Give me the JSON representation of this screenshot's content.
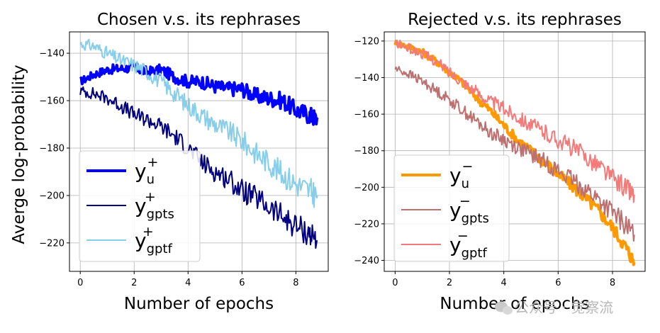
{
  "chart_data": [
    {
      "type": "line",
      "title": "Chosen v.s. its rephrases",
      "xlabel": "Number of epochs",
      "ylabel": "Averge log-probability",
      "xlim": [
        -0.4,
        9.2
      ],
      "ylim": [
        -232,
        -131
      ],
      "xticks": [
        0,
        2,
        4,
        6,
        8
      ],
      "yticks": [
        -140,
        -160,
        -180,
        -200,
        -220
      ],
      "grid": true,
      "legend_position": "lower-left",
      "series": [
        {
          "name": "y_u^+",
          "legend": {
            "base": "y",
            "sub": "u",
            "sup": "+"
          },
          "color": "#0000ff",
          "linewidth": 4,
          "x": [
            0,
            0.5,
            1,
            1.5,
            2,
            2.5,
            3,
            3.5,
            4,
            4.5,
            5,
            5.5,
            6,
            6.5,
            7,
            7.5,
            8,
            8.5,
            8.8
          ],
          "y": [
            -152,
            -149,
            -147,
            -146.5,
            -146,
            -148,
            -147,
            -150,
            -152,
            -152,
            -154,
            -155,
            -155,
            -158,
            -159,
            -160,
            -164,
            -166,
            -168
          ]
        },
        {
          "name": "y_gpts^+",
          "legend": {
            "base": "y",
            "sub": "gpts",
            "sup": "+"
          },
          "color": "#000080",
          "linewidth": 2,
          "x": [
            0,
            0.5,
            1,
            1.5,
            2,
            2.5,
            3,
            3.5,
            4,
            4.5,
            5,
            5.5,
            6,
            6.5,
            7,
            7.5,
            8,
            8.5,
            8.8
          ],
          "y": [
            -156,
            -157,
            -159,
            -162,
            -166,
            -168,
            -171,
            -175,
            -180,
            -186,
            -190,
            -193,
            -198,
            -201,
            -205,
            -209,
            -213,
            -216,
            -219
          ]
        },
        {
          "name": "y_gptf^+",
          "legend": {
            "base": "y",
            "sub": "gptf",
            "sup": "+"
          },
          "color": "#87ceeb",
          "linewidth": 2,
          "x": [
            0,
            0.5,
            1,
            1.5,
            2,
            2.5,
            3,
            3.5,
            4,
            4.5,
            5,
            5.5,
            6,
            6.5,
            7,
            7.5,
            8,
            8.5,
            8.8
          ],
          "y": [
            -136,
            -137,
            -140,
            -143,
            -145,
            -148,
            -152,
            -157,
            -162,
            -166,
            -170,
            -173,
            -177,
            -182,
            -186,
            -191,
            -195,
            -198,
            -200
          ]
        }
      ]
    },
    {
      "type": "line",
      "title": "Rejected v.s. its rephrases",
      "xlabel": "Number of epochs",
      "ylabel": "",
      "xlim": [
        -0.4,
        9.2
      ],
      "ylim": [
        -246,
        -115
      ],
      "xticks": [
        0,
        2,
        4,
        6,
        8
      ],
      "yticks": [
        -120,
        -140,
        -160,
        -180,
        -200,
        -220,
        -240
      ],
      "grid": true,
      "legend_position": "lower-left",
      "series": [
        {
          "name": "y_u^-",
          "legend": {
            "base": "y",
            "sub": "u",
            "sup": "−"
          },
          "color": "#ff9900",
          "linewidth": 4,
          "x": [
            0,
            0.5,
            1,
            1.5,
            2,
            2.5,
            3,
            3.5,
            4,
            4.5,
            5,
            5.5,
            6,
            6.5,
            7,
            7.5,
            8,
            8.5,
            8.8
          ],
          "y": [
            -121,
            -123,
            -126,
            -131,
            -137,
            -143,
            -151,
            -158,
            -166,
            -174,
            -180,
            -186,
            -193,
            -199,
            -206,
            -213,
            -222,
            -233,
            -241
          ]
        },
        {
          "name": "y_gpts^-",
          "legend": {
            "base": "y",
            "sub": "gpts",
            "sup": "−"
          },
          "color": "#bc7070",
          "linewidth": 2,
          "x": [
            0,
            0.5,
            1,
            1.5,
            2,
            2.5,
            3,
            3.5,
            4,
            4.5,
            5,
            5.5,
            6,
            6.5,
            7,
            7.5,
            8,
            8.5,
            8.8
          ],
          "y": [
            -135,
            -138,
            -142,
            -147,
            -152,
            -158,
            -164,
            -170,
            -174,
            -178,
            -182,
            -186,
            -191,
            -196,
            -201,
            -207,
            -214,
            -221,
            -226
          ]
        },
        {
          "name": "y_gptf^-",
          "legend": {
            "base": "y",
            "sub": "gptf",
            "sup": "−"
          },
          "color": "#f47a7a",
          "linewidth": 2,
          "x": [
            0,
            0.5,
            1,
            1.5,
            2,
            2.5,
            3,
            3.5,
            4,
            4.5,
            5,
            5.5,
            6,
            6.5,
            7,
            7.5,
            8,
            8.5,
            8.8
          ],
          "y": [
            -121,
            -124,
            -127,
            -131,
            -137,
            -142,
            -148,
            -153,
            -157,
            -161,
            -166,
            -170,
            -174,
            -178,
            -183,
            -188,
            -195,
            -200,
            -204
          ]
        }
      ]
    }
  ],
  "watermark": {
    "text": "公众号 · 觉察流",
    "icon": "wechat-icon"
  }
}
